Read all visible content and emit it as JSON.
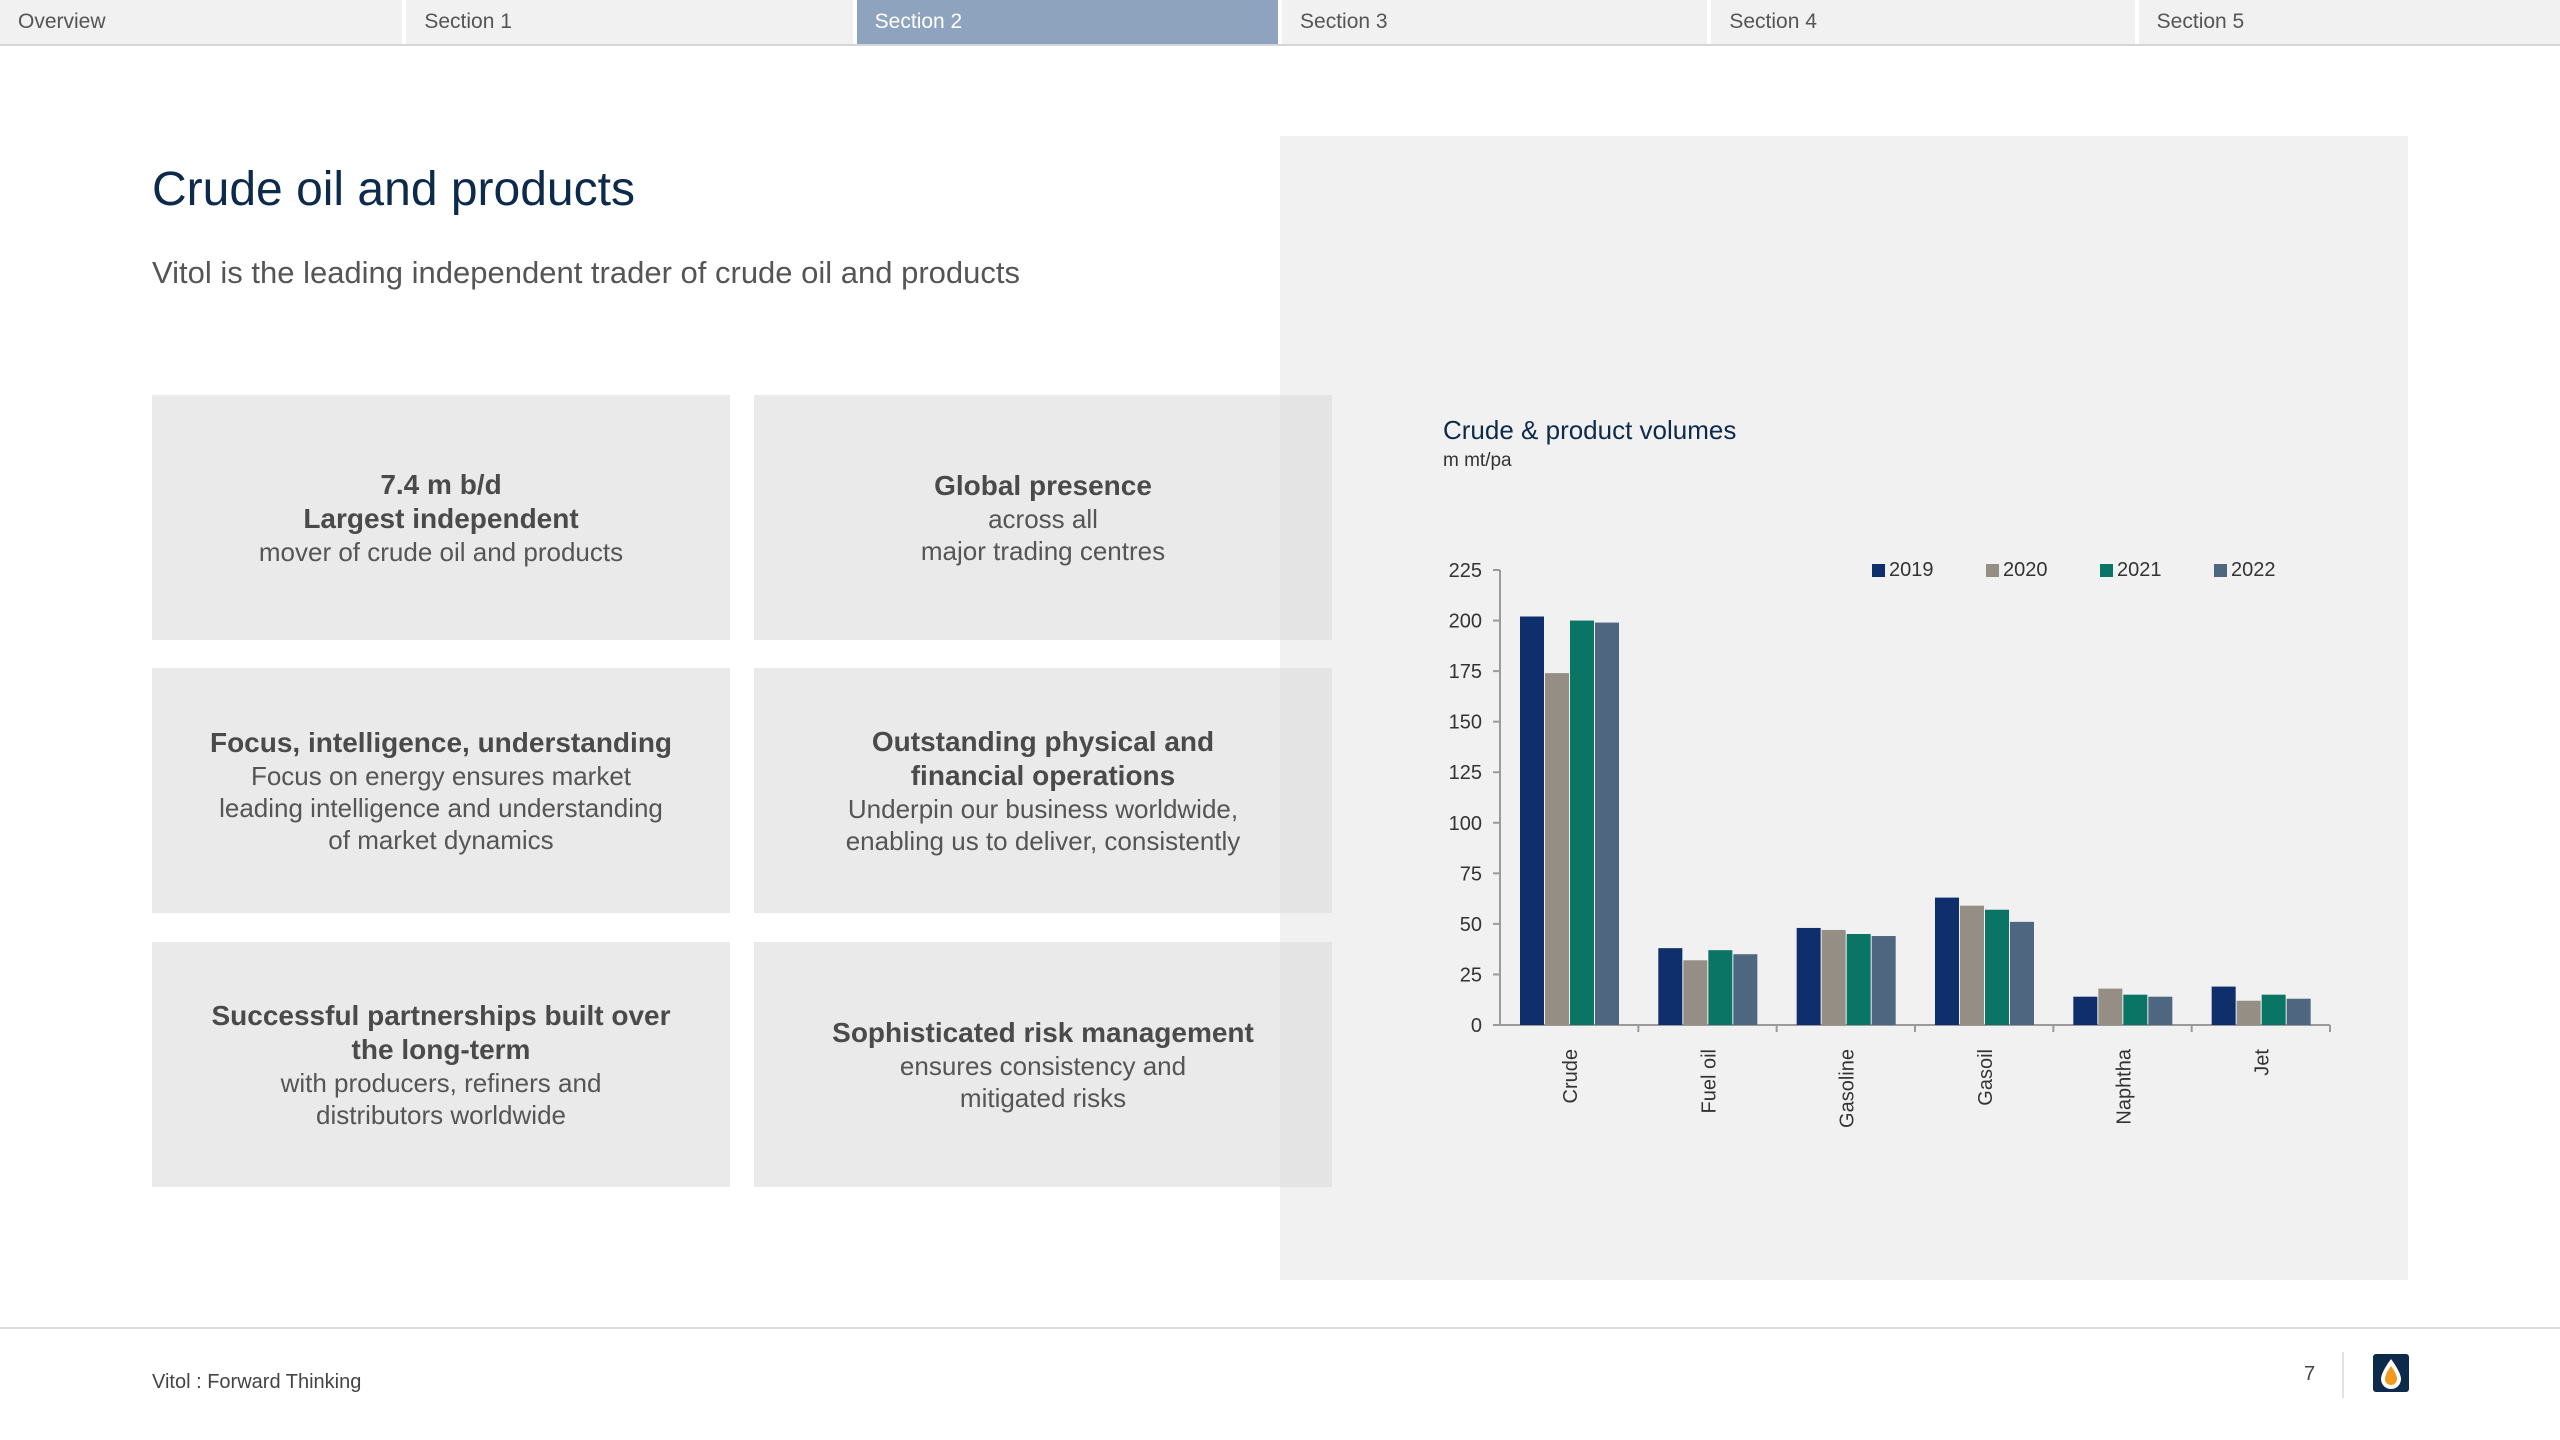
{
  "nav": {
    "tabs": [
      {
        "label": "Overview",
        "active": false
      },
      {
        "label": "Section 1",
        "active": false
      },
      {
        "label": "Section 2",
        "active": true
      },
      {
        "label": "Section 3",
        "active": false
      },
      {
        "label": "Section 4",
        "active": false
      },
      {
        "label": "Section 5",
        "active": false
      }
    ]
  },
  "page": {
    "title": "Crude oil and products",
    "subtitle": "Vitol is the leading independent trader of crude oil and products"
  },
  "cards": [
    {
      "title": "7.4 m b/d\nLargest independent",
      "body": "mover of crude oil and products"
    },
    {
      "title": "Global presence",
      "body": "across all\nmajor trading centres"
    },
    {
      "title": "Focus, intelligence, understanding",
      "body": "Focus on energy ensures market\nleading intelligence and understanding\nof market dynamics"
    },
    {
      "title": "Outstanding physical and\nfinancial operations",
      "body": "Underpin our business worldwide,\nenabling us to deliver, consistently"
    },
    {
      "title": "Successful partnerships built over\nthe long-term",
      "body": "with producers, refiners and\ndistributors worldwide"
    },
    {
      "title": "Sophisticated risk management",
      "body": "ensures consistency and\nmitigated risks"
    }
  ],
  "chart_data": {
    "type": "bar",
    "title": "Crude & product volumes",
    "unit": "m mt/pa",
    "xlabel": "",
    "ylabel": "",
    "categories": [
      "Crude",
      "Fuel oil",
      "Gasoline",
      "Gasoil",
      "Naphtha",
      "Jet"
    ],
    "series": [
      {
        "name": "2019",
        "values": [
          202,
          38,
          48,
          63,
          14,
          19
        ],
        "color": "#0e2f6b"
      },
      {
        "name": "2020",
        "values": [
          174,
          32,
          47,
          59,
          18,
          12
        ],
        "color": "#948e84"
      },
      {
        "name": "2021",
        "values": [
          200,
          37,
          45,
          57,
          15,
          15
        ],
        "color": "#0a7565"
      },
      {
        "name": "2022",
        "values": [
          199,
          35,
          44,
          51,
          14,
          13
        ],
        "color": "#4f6680"
      }
    ],
    "ylim": [
      0,
      225
    ],
    "yticks": [
      0,
      25,
      50,
      75,
      100,
      125,
      150,
      175,
      200,
      225
    ],
    "grid": false,
    "legend": "top-right"
  },
  "footer": {
    "text": "Vitol : Forward Thinking",
    "page_number": "7"
  },
  "colors": {
    "brand_navy": "#0d2a4b",
    "active_tab": "#8ea3bd",
    "logo_orange": "#f39a1d"
  }
}
